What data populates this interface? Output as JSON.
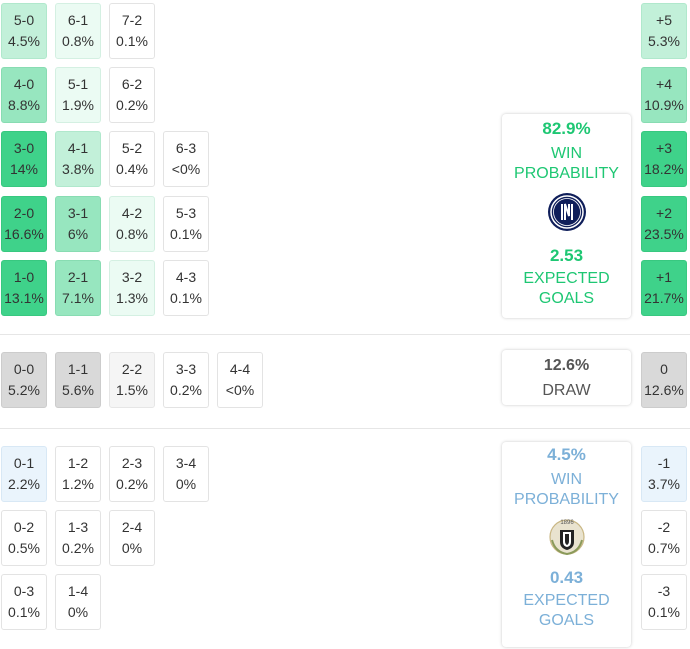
{
  "home": {
    "rows": [
      [
        {
          "score": "5-0",
          "pct": "4.5%",
          "shade": "g2"
        },
        {
          "score": "6-1",
          "pct": "0.8%",
          "shade": "g1"
        },
        {
          "score": "7-2",
          "pct": "0.1%",
          "shade": ""
        }
      ],
      [
        {
          "score": "4-0",
          "pct": "8.8%",
          "shade": "g3"
        },
        {
          "score": "5-1",
          "pct": "1.9%",
          "shade": "g1"
        },
        {
          "score": "6-2",
          "pct": "0.2%",
          "shade": ""
        }
      ],
      [
        {
          "score": "3-0",
          "pct": "14%",
          "shade": "g5"
        },
        {
          "score": "4-1",
          "pct": "3.8%",
          "shade": "g2"
        },
        {
          "score": "5-2",
          "pct": "0.4%",
          "shade": ""
        },
        {
          "score": "6-3",
          "pct": "<0%",
          "shade": ""
        }
      ],
      [
        {
          "score": "2-0",
          "pct": "16.6%",
          "shade": "g5"
        },
        {
          "score": "3-1",
          "pct": "6%",
          "shade": "g3"
        },
        {
          "score": "4-2",
          "pct": "0.8%",
          "shade": "g1"
        },
        {
          "score": "5-3",
          "pct": "0.1%",
          "shade": ""
        }
      ],
      [
        {
          "score": "1-0",
          "pct": "13.1%",
          "shade": "g5"
        },
        {
          "score": "2-1",
          "pct": "7.1%",
          "shade": "g3"
        },
        {
          "score": "3-2",
          "pct": "1.3%",
          "shade": "g1"
        },
        {
          "score": "4-3",
          "pct": "0.1%",
          "shade": ""
        }
      ]
    ],
    "margins": [
      {
        "label": "+5",
        "pct": "5.3%",
        "shade": "g2"
      },
      {
        "label": "+4",
        "pct": "10.9%",
        "shade": "g3"
      },
      {
        "label": "+3",
        "pct": "18.2%",
        "shade": "g5"
      },
      {
        "label": "+2",
        "pct": "23.5%",
        "shade": "g5"
      },
      {
        "label": "+1",
        "pct": "21.7%",
        "shade": "g5"
      }
    ],
    "win_pct": "82.9%",
    "win_label_1": "WIN",
    "win_label_2": "PROBABILITY",
    "xg": "2.53",
    "xg_label_1": "EXPECTED",
    "xg_label_2": "GOALS",
    "color": "#1ec773",
    "crest": "inter-crest-icon"
  },
  "draw": {
    "cells": [
      {
        "score": "0-0",
        "pct": "5.2%",
        "shade": "gr2"
      },
      {
        "score": "1-1",
        "pct": "5.6%",
        "shade": "gr2"
      },
      {
        "score": "2-2",
        "pct": "1.5%",
        "shade": "gr1"
      },
      {
        "score": "3-3",
        "pct": "0.2%",
        "shade": ""
      },
      {
        "score": "4-4",
        "pct": "<0%",
        "shade": ""
      }
    ],
    "margin": {
      "label": "0",
      "pct": "12.6%",
      "shade": "gr2"
    },
    "pct": "12.6%",
    "label": "DRAW"
  },
  "away": {
    "rows": [
      [
        {
          "score": "0-1",
          "pct": "2.2%",
          "shade": "b1"
        },
        {
          "score": "1-2",
          "pct": "1.2%",
          "shade": ""
        },
        {
          "score": "2-3",
          "pct": "0.2%",
          "shade": ""
        },
        {
          "score": "3-4",
          "pct": "0%",
          "shade": ""
        }
      ],
      [
        {
          "score": "0-2",
          "pct": "0.5%",
          "shade": ""
        },
        {
          "score": "1-3",
          "pct": "0.2%",
          "shade": ""
        },
        {
          "score": "2-4",
          "pct": "0%",
          "shade": ""
        }
      ],
      [
        {
          "score": "0-3",
          "pct": "0.1%",
          "shade": ""
        },
        {
          "score": "1-4",
          "pct": "0%",
          "shade": ""
        }
      ]
    ],
    "margins": [
      {
        "label": "-1",
        "pct": "3.7%",
        "shade": "b1"
      },
      {
        "label": "-2",
        "pct": "0.7%",
        "shade": ""
      },
      {
        "label": "-3",
        "pct": "0.1%",
        "shade": ""
      }
    ],
    "win_pct": "4.5%",
    "win_label_1": "WIN",
    "win_label_2": "PROBABILITY",
    "xg": "0.43",
    "xg_label_1": "EXPECTED",
    "xg_label_2": "GOALS",
    "color": "#7cb0d8",
    "crest_text": "1896",
    "crest": "udinese-crest-icon"
  }
}
